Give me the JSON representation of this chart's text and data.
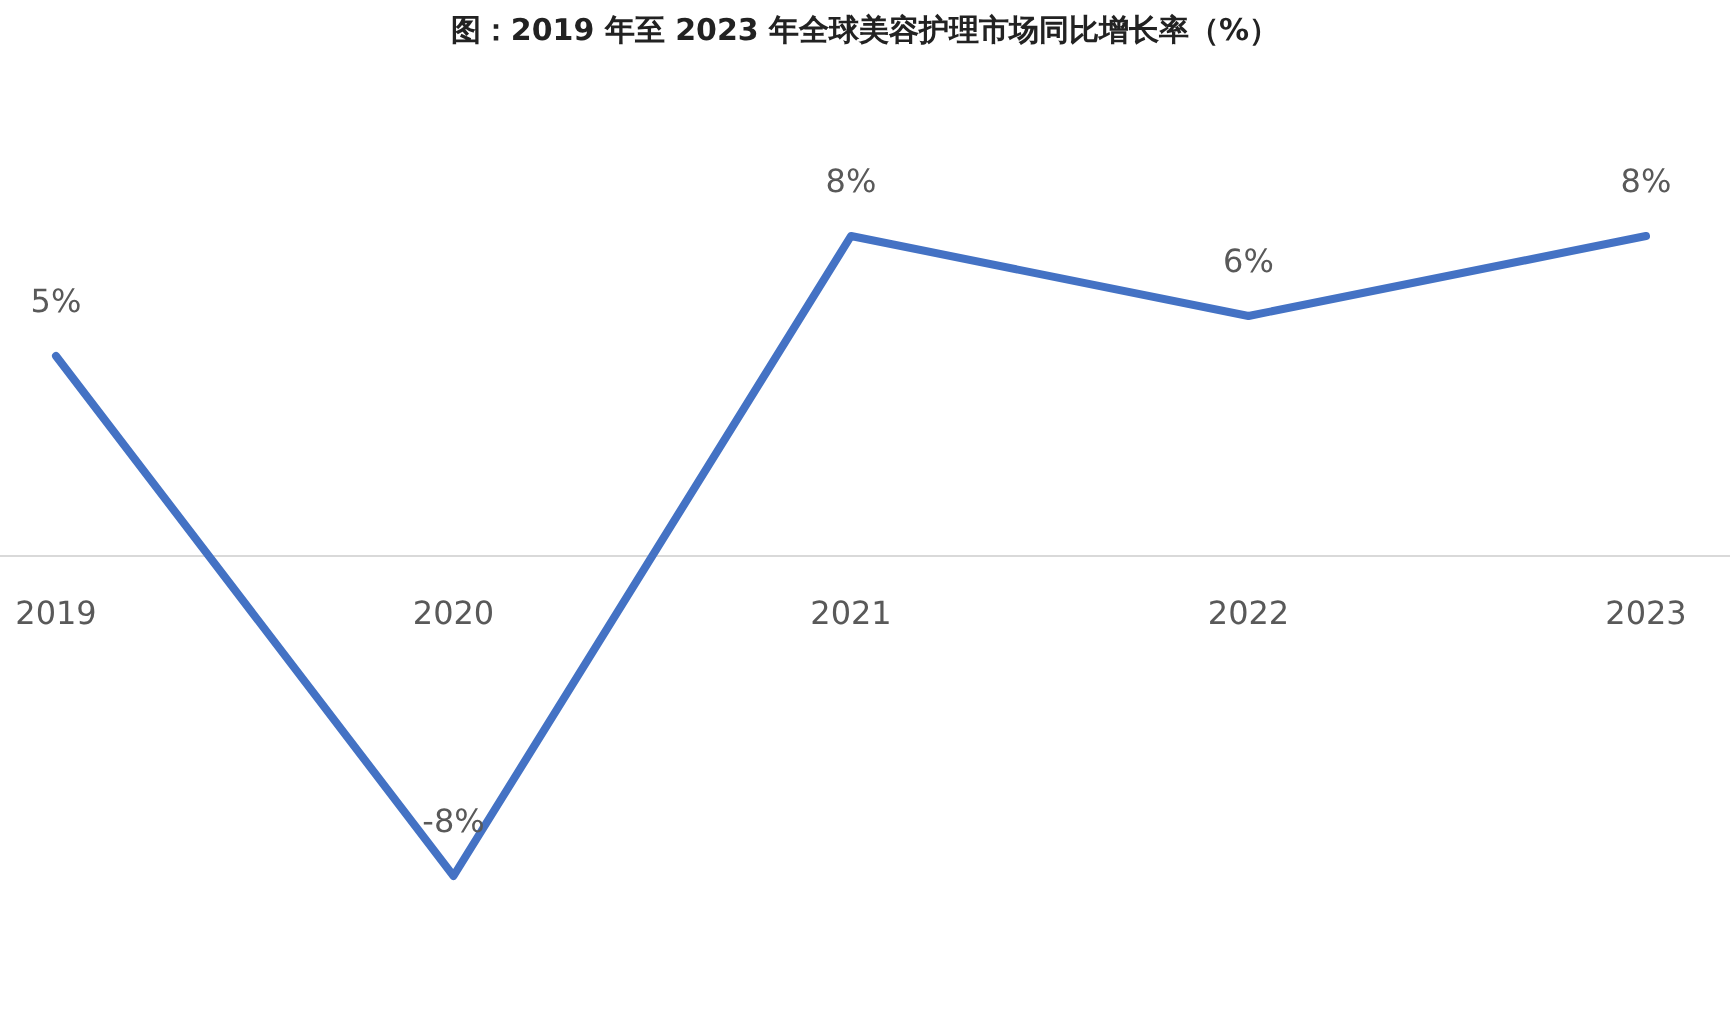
{
  "chart_data": {
    "type": "line",
    "title": "图：2019 年至 2023 年全球美容护理市场同比增长率（%）",
    "categories": [
      "2019",
      "2020",
      "2021",
      "2022",
      "2023"
    ],
    "values": [
      5,
      -8,
      8,
      6,
      8
    ],
    "value_labels": [
      "5%",
      "-8%",
      "8%",
      "6%",
      "8%"
    ],
    "color": "#4472c4"
  }
}
